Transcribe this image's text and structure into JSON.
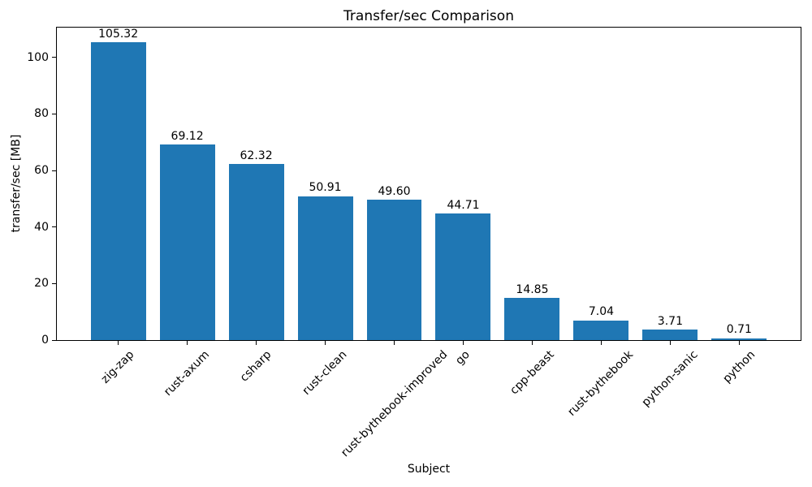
{
  "chart_data": {
    "type": "bar",
    "title": "Transfer/sec Comparison",
    "xlabel": "Subject",
    "ylabel": "transfer/sec [MB]",
    "categories": [
      "zig-zap",
      "rust-axum",
      "csharp",
      "rust-clean",
      "rust-bythebook-improved",
      "go",
      "cpp-beast",
      "rust-bythebook",
      "python-sanic",
      "python"
    ],
    "values": [
      105.32,
      69.12,
      62.32,
      50.91,
      49.6,
      44.71,
      14.85,
      7.04,
      3.71,
      0.71
    ],
    "value_labels": [
      "105.32",
      "69.12",
      "62.32",
      "50.91",
      "49.60",
      "44.71",
      "14.85",
      "7.04",
      "3.71",
      "0.71"
    ],
    "yticks": [
      0,
      20,
      40,
      60,
      80,
      100
    ],
    "ylim": [
      0,
      110.59
    ],
    "bar_color": "#1f77b4",
    "axis_color": "#000000",
    "background_color": "#ffffff",
    "bar_width_fraction": 0.8,
    "x_tick_rotation_deg": 45,
    "grid": false,
    "legend_position": "none"
  }
}
